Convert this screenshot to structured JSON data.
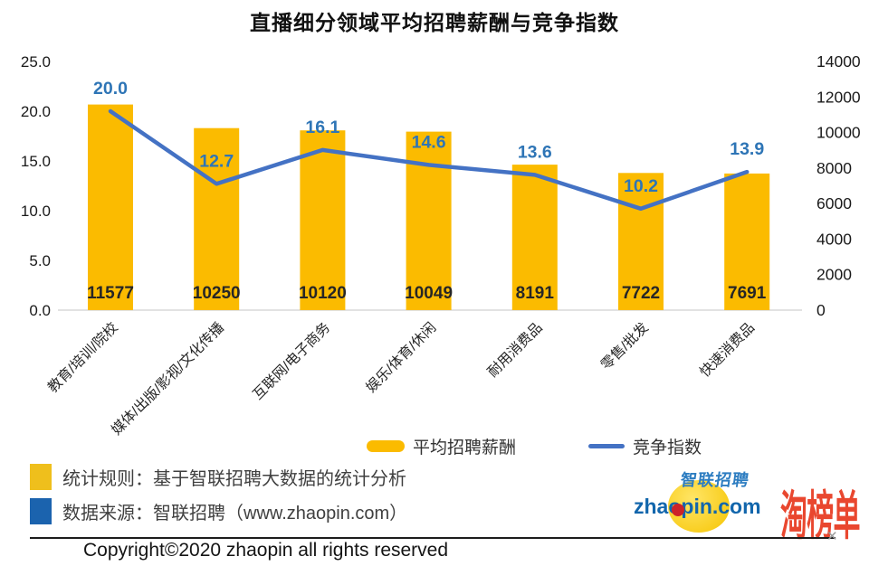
{
  "title": "直播细分领域平均招聘薪酬与竞争指数",
  "chart_data": {
    "type": "combo",
    "categories": [
      "教育/培训/院校",
      "媒体/出版/影视/文化传播",
      "互联网/电子商务",
      "娱乐/体育/休闲",
      "耐用消费品",
      "零售/批发",
      "快速消费品"
    ],
    "series": [
      {
        "name": "平均招聘薪酬",
        "type": "bar",
        "axis": "right",
        "color": "#FBBB00",
        "values": [
          11577,
          10250,
          10120,
          10049,
          8191,
          7722,
          7691
        ]
      },
      {
        "name": "竞争指数",
        "type": "line",
        "axis": "left",
        "color": "#4472C4",
        "label_color": "#2E75B6",
        "values": [
          20.0,
          12.7,
          16.1,
          14.6,
          13.6,
          10.2,
          13.9
        ]
      }
    ],
    "left_axis": {
      "min": 0,
      "max": 25,
      "ticks": [
        "25.0",
        "20.0",
        "15.0",
        "10.0",
        "5.0",
        "0.0"
      ]
    },
    "right_axis": {
      "min": 0,
      "max": 14000,
      "ticks": [
        "14000",
        "12000",
        "10000",
        "8000",
        "6000",
        "4000",
        "2000",
        "0"
      ]
    },
    "grid": false,
    "legend_position": "bottom",
    "title": "直播细分领域平均招聘薪酬与竞争指数"
  },
  "legend": {
    "bar_label": "平均招聘薪酬",
    "line_label": "竞争指数"
  },
  "notes": {
    "rule": {
      "text": "统计规则：基于智联招聘大数据的统计分析",
      "swatch_color": "#EFBF1C"
    },
    "source": {
      "text": "数据来源：智联招聘（www.zhaopin.com）",
      "swatch_color": "#1B63AE"
    }
  },
  "branding": {
    "zhaopin_cn": "智联招聘",
    "zhaopin_domain": "zhaopin.com",
    "taobangdan": "淘榜单"
  },
  "footer": {
    "copyright": "Copyright©2020 zhaopin all rights reserved",
    "separator_end_mark": "✕"
  },
  "colors": {
    "bar": "#FBBB00",
    "line": "#4472C4",
    "line_label": "#2E75B6",
    "bar_label": "#262626",
    "axis_text": "#1a1a1a",
    "axis_line": "#d9d9d9"
  }
}
